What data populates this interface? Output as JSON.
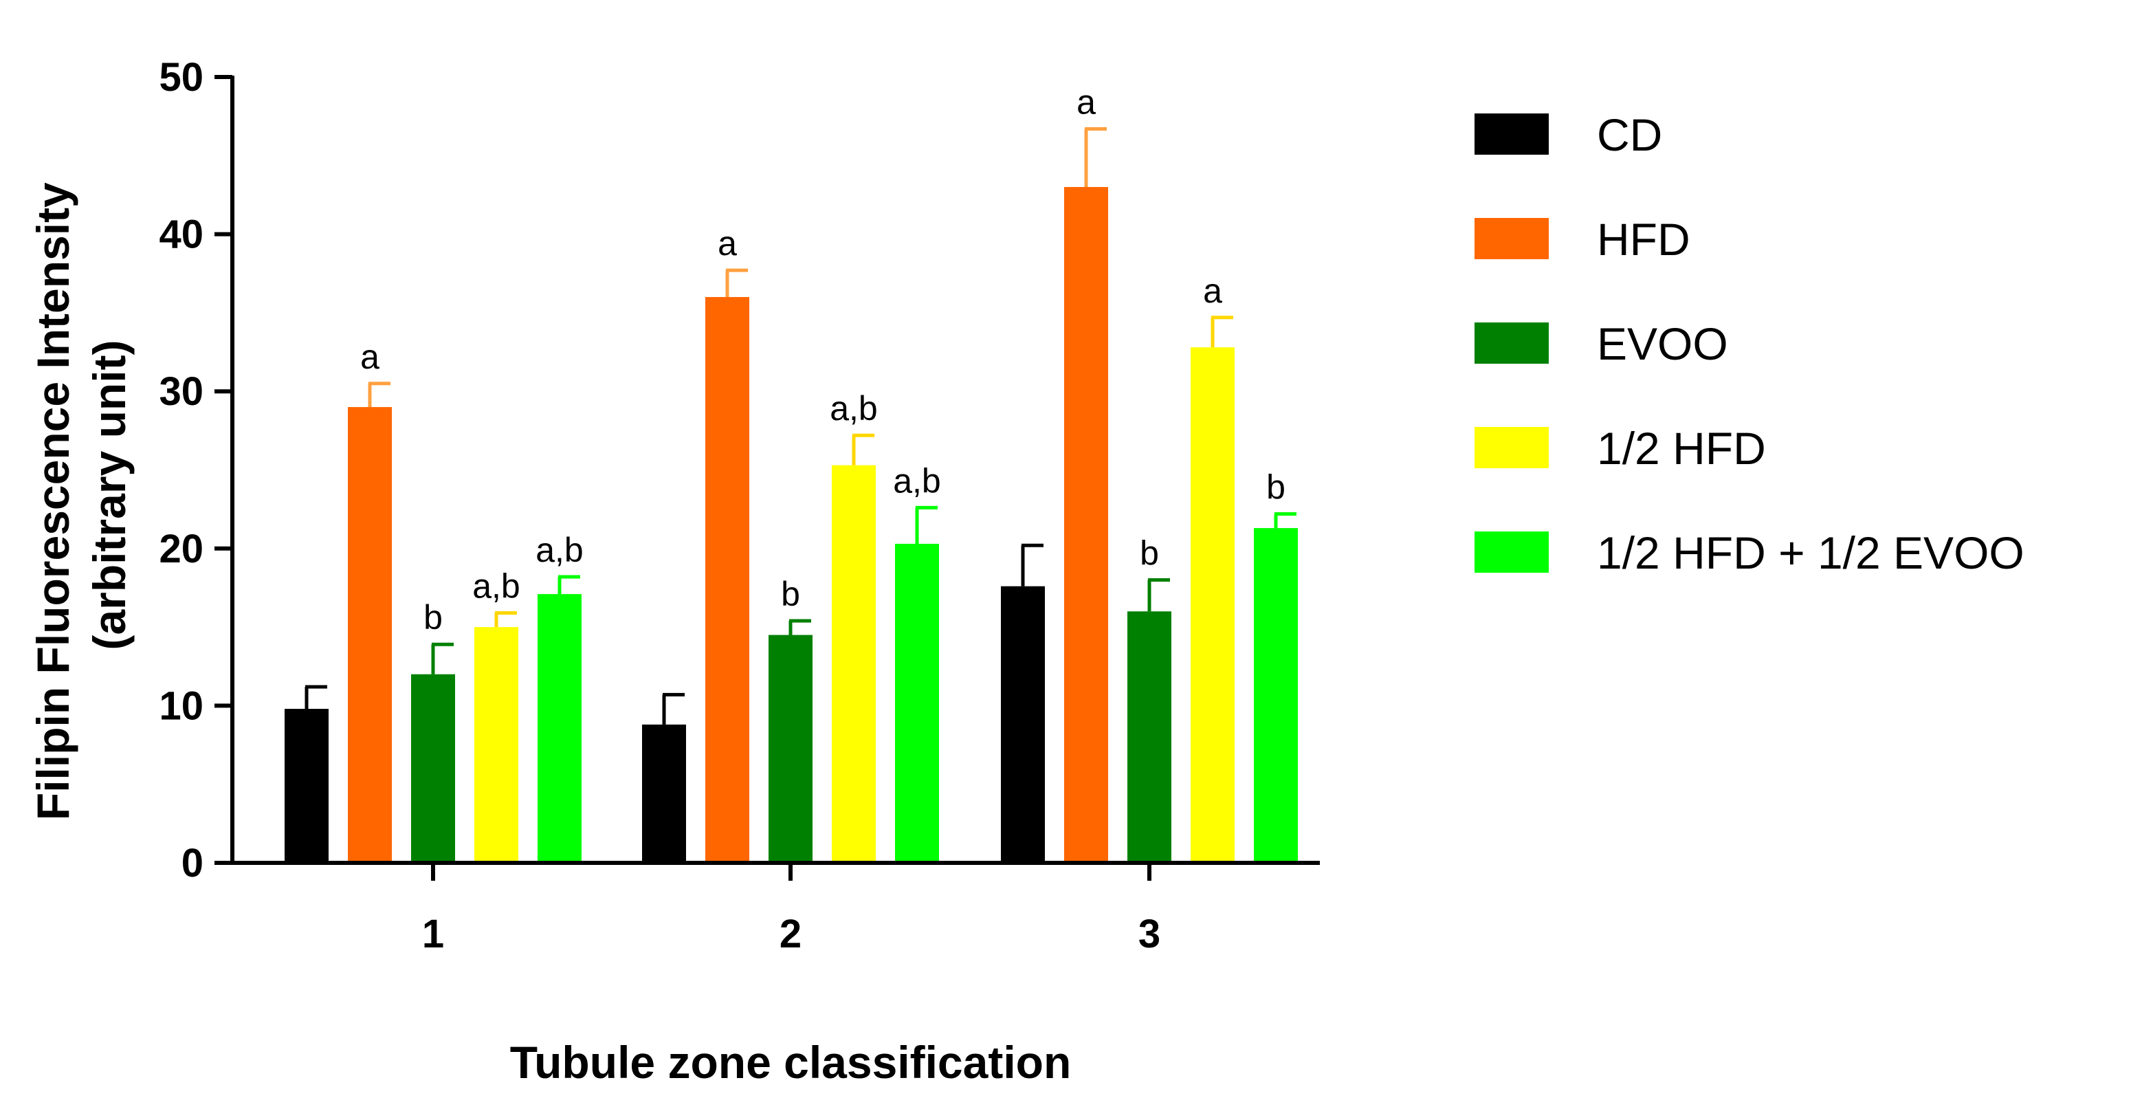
{
  "chart_data": {
    "type": "bar",
    "title": "",
    "xlabel": "Tubule zone classification",
    "ylabel_lines": [
      "Filipin Fluorescence Intensity",
      "(arbitrary unit)"
    ],
    "ylim": [
      0,
      50
    ],
    "yticks": [
      0,
      10,
      20,
      30,
      40,
      50
    ],
    "categories": [
      "1",
      "2",
      "3"
    ],
    "legend_position": "right",
    "grid": false,
    "series": [
      {
        "name": "CD",
        "color": "#000000",
        "error_color": "#000000",
        "values": [
          9.8,
          8.8,
          17.6
        ],
        "errors": [
          1.4,
          1.9,
          2.6
        ],
        "labels": [
          "",
          "",
          ""
        ]
      },
      {
        "name": "HFD",
        "color": "#ff6600",
        "error_color": "#ffa040",
        "values": [
          29.0,
          36.0,
          43.0
        ],
        "errors": [
          1.5,
          1.7,
          3.7
        ],
        "labels": [
          "a",
          "a",
          "a"
        ]
      },
      {
        "name": "EVOO",
        "color": "#008000",
        "error_color": "#008000",
        "values": [
          12.0,
          14.5,
          16.0
        ],
        "errors": [
          1.9,
          0.9,
          2.0
        ],
        "labels": [
          "b",
          "b",
          "b"
        ]
      },
      {
        "name": "1/2 HFD",
        "color": "#ffff00",
        "error_color": "#ffd700",
        "values": [
          15.0,
          25.3,
          32.8
        ],
        "errors": [
          0.9,
          1.9,
          1.9
        ],
        "labels": [
          "a,b",
          "a,b",
          "a"
        ]
      },
      {
        "name": "1/2 HFD + 1/2 EVOO",
        "color": "#00ff00",
        "error_color": "#00ff00",
        "values": [
          17.1,
          20.3,
          21.3
        ],
        "errors": [
          1.1,
          2.3,
          0.9
        ],
        "labels": [
          "a,b",
          "a,b",
          "b"
        ]
      }
    ]
  }
}
